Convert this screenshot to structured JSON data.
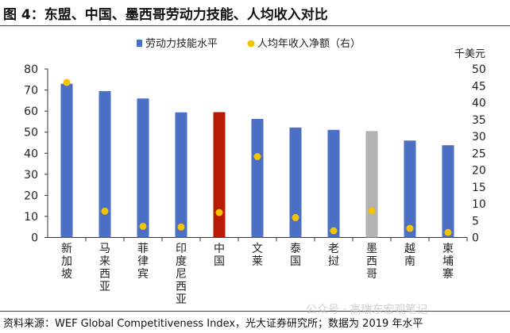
{
  "title": "图 4：东盟、中国、墨西哥劳动力技能、人均收入对比",
  "source": "资料来源：WEF Global Competitiveness Index，光大证券研究所；数据为 2019 年水平",
  "watermark": "公众号 · 高瑞东宏观笔记",
  "chart_data": {
    "type": "bar",
    "title": "",
    "categories": [
      "新加坡",
      "马来西亚",
      "菲律宾",
      "印度尼西亚",
      "中国",
      "文莱",
      "泰国",
      "老挝",
      "墨西哥",
      "越南",
      "柬埔寨"
    ],
    "series": [
      {
        "name": "劳动力技能水平",
        "type": "bar",
        "axis": "left",
        "color": "#4A6FC4",
        "values": [
          73,
          69.5,
          66,
          59.4,
          59.5,
          56.3,
          52.2,
          51.1,
          50.5,
          46,
          43.8
        ]
      },
      {
        "name": "人均年收入净额（右）",
        "type": "scatter",
        "axis": "right",
        "color": "#F5C400",
        "values": [
          46,
          7.8,
          3.3,
          3.1,
          7.4,
          24,
          5.9,
          2,
          7.9,
          2.7,
          1.5
        ]
      }
    ],
    "highlight_colors": {
      "中国": "#B81C05",
      "墨西哥": "#B3B3B3"
    },
    "ylim_left": [
      0,
      80
    ],
    "yticks_left": [
      0,
      10,
      20,
      30,
      40,
      50,
      60,
      70,
      80
    ],
    "ylim_right": [
      0,
      50
    ],
    "yticks_right": [
      0,
      5,
      10,
      15,
      20,
      25,
      30,
      35,
      40,
      45,
      50
    ],
    "right_unit": "千美元",
    "grid": false,
    "legend_position": "top"
  }
}
